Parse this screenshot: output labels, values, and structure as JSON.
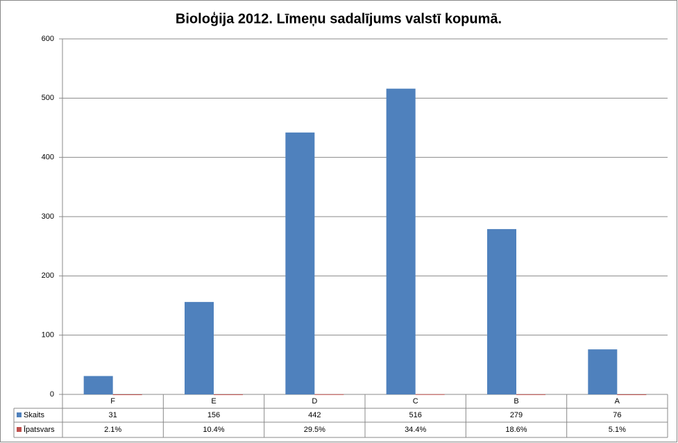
{
  "chart_data": {
    "type": "bar",
    "title": "Bioloģija 2012. Līmeņu sadalījums valstī kopumā.",
    "categories": [
      "F",
      "E",
      "D",
      "C",
      "B",
      "A"
    ],
    "series": [
      {
        "name": "Skaits",
        "color": "#4f81bd",
        "values": [
          31,
          156,
          442,
          516,
          279,
          76
        ]
      },
      {
        "name": "Īpatsvars",
        "color": "#c0504d",
        "values": [
          0.021,
          0.104,
          0.295,
          0.344,
          0.186,
          0.051
        ],
        "value_labels": [
          "2.1%",
          "10.4%",
          "29.5%",
          "34.4%",
          "18.6%",
          "5.1%"
        ]
      }
    ],
    "ylim": [
      0,
      600
    ],
    "yticks": [
      0,
      100,
      200,
      300,
      400,
      500,
      600
    ],
    "grid": true
  }
}
